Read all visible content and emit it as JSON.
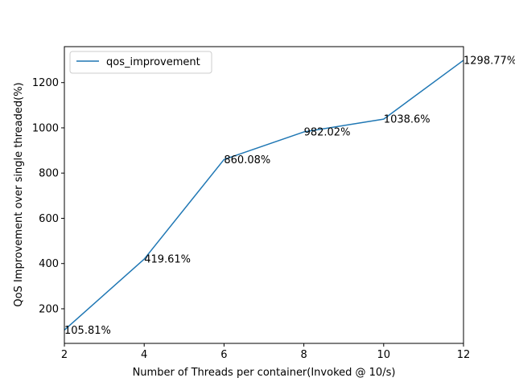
{
  "chart_data": {
    "type": "line",
    "title": "",
    "xlabel": "Number of Threads per container(Invoked @ 10/s)",
    "ylabel": "QoS Improvement over single threaded(%)",
    "xlim": [
      2,
      12
    ],
    "ylim": [
      47,
      1359
    ],
    "xticks": [
      2,
      4,
      6,
      8,
      10,
      12
    ],
    "yticks": [
      200,
      400,
      600,
      800,
      1000,
      1200
    ],
    "grid": false,
    "legend_position": "top-left",
    "series": [
      {
        "name": "qos_improvement",
        "color": "#1f77b4",
        "x": [
          2,
          4,
          6,
          8,
          10,
          12
        ],
        "y": [
          105.81,
          419.61,
          860.08,
          982.02,
          1038.6,
          1298.77
        ],
        "labels": [
          "105.81%",
          "419.61%",
          "860.08%",
          "982.02%",
          "1038.6%",
          "1298.77%"
        ]
      }
    ]
  }
}
